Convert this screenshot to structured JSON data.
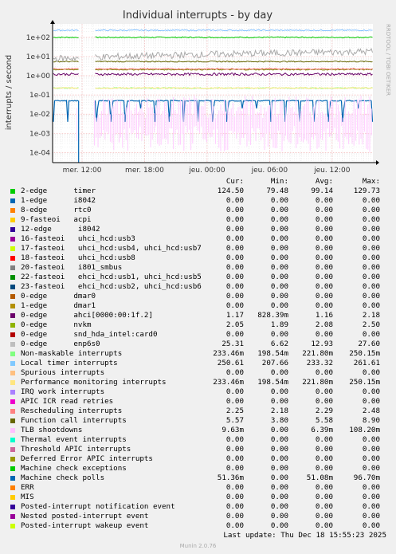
{
  "chart_data": {
    "type": "line",
    "title": "Individual interrupts - by day",
    "ylabel": "interrupts / second",
    "yscale": "log",
    "ylim": [
      3e-05,
      500
    ],
    "yticks": [
      "1e+02",
      "1e+01",
      "1e+00",
      "1e-01",
      "1e-02",
      "1e-03",
      "1e-04"
    ],
    "xticks": [
      "mer. 12:00",
      "mer. 18:00",
      "jeu. 00:00",
      "jeu. 06:00",
      "jeu. 12:00"
    ],
    "gap": [
      "mer. 11:40",
      "mer. 13:10"
    ],
    "series": [
      {
        "name": "timer",
        "color": "#00cc00",
        "level": 100
      },
      {
        "name": "Non-maskable interrupts",
        "color": "#99ff99",
        "level": 0.23
      },
      {
        "name": "Performance monitoring interrupts",
        "color": "#ffe680",
        "level": 0.23
      },
      {
        "name": "Local timer interrupts",
        "color": "#80bfff",
        "level": 233
      },
      {
        "name": "Function call interrupts",
        "color": "#666600",
        "level": 5.5
      },
      {
        "name": "nvkm",
        "color": "#808000",
        "level": 2.1
      },
      {
        "name": "Rescheduling interrupts",
        "color": "#ff8080",
        "level": 2.3
      },
      {
        "name": "ahci",
        "color": "#660066",
        "level": 1.2
      },
      {
        "name": "enp6s0",
        "color": "#aaaaaa",
        "level": 13
      },
      {
        "name": "Machine check polls",
        "color": "#0066b3",
        "level": 0.05
      },
      {
        "name": "TLB shootdowns",
        "color": "#ffccff",
        "level": 0.006
      }
    ]
  },
  "side_label": "RRDTOOL / TOBI OETIKER",
  "legend_header": {
    "cur": "Cur:",
    "min": "Min:",
    "avg": "Avg:",
    "max": "Max:"
  },
  "legend": [
    {
      "label": "2-edge      timer",
      "color": "#00cc00",
      "cur": "124.50",
      "min": "79.48",
      "avg": "99.14",
      "max": "129.73"
    },
    {
      "label": "1-edge      i8042",
      "color": "#0066b3",
      "cur": "0.00",
      "min": "0.00",
      "avg": "0.00",
      "max": "0.00"
    },
    {
      "label": "8-edge      rtc0",
      "color": "#ff8000",
      "cur": "0.00",
      "min": "0.00",
      "avg": "0.00",
      "max": "0.00"
    },
    {
      "label": "9-fasteoi   acpi",
      "color": "#ffcc00",
      "cur": "0.00",
      "min": "0.00",
      "avg": "0.00",
      "max": "0.00"
    },
    {
      "label": "12-edge      i8042",
      "color": "#330099",
      "cur": "0.00",
      "min": "0.00",
      "avg": "0.00",
      "max": "0.00"
    },
    {
      "label": "16-fasteoi   uhci_hcd:usb3",
      "color": "#990099",
      "cur": "0.00",
      "min": "0.00",
      "avg": "0.00",
      "max": "0.00"
    },
    {
      "label": "17-fasteoi   uhci_hcd:usb4, uhci_hcd:usb7",
      "color": "#ccff00",
      "cur": "0.00",
      "min": "0.00",
      "avg": "0.00",
      "max": "0.00"
    },
    {
      "label": "18-fasteoi   uhci_hcd:usb8",
      "color": "#ff0000",
      "cur": "0.00",
      "min": "0.00",
      "avg": "0.00",
      "max": "0.00"
    },
    {
      "label": "20-fasteoi   i801_smbus",
      "color": "#808080",
      "cur": "0.00",
      "min": "0.00",
      "avg": "0.00",
      "max": "0.00"
    },
    {
      "label": "22-fasteoi   ehci_hcd:usb1, uhci_hcd:usb5",
      "color": "#008f00",
      "cur": "0.00",
      "min": "0.00",
      "avg": "0.00",
      "max": "0.00"
    },
    {
      "label": "23-fasteoi   ehci_hcd:usb2, uhci_hcd:usb6",
      "color": "#00487d",
      "cur": "0.00",
      "min": "0.00",
      "avg": "0.00",
      "max": "0.00"
    },
    {
      "label": "0-edge      dmar0",
      "color": "#b35a00",
      "cur": "0.00",
      "min": "0.00",
      "avg": "0.00",
      "max": "0.00"
    },
    {
      "label": "1-edge      dmar1",
      "color": "#b38f00",
      "cur": "0.00",
      "min": "0.00",
      "avg": "0.00",
      "max": "0.00"
    },
    {
      "label": "0-edge      ahci[0000:00:1f.2]",
      "color": "#6b006b",
      "cur": "1.17",
      "min": "828.39m",
      "avg": "1.16",
      "max": "2.18"
    },
    {
      "label": "0-edge      nvkm",
      "color": "#8fb300",
      "cur": "2.05",
      "min": "1.89",
      "avg": "2.08",
      "max": "2.50"
    },
    {
      "label": "0-edge      snd_hda_intel:card0",
      "color": "#b30000",
      "cur": "0.00",
      "min": "0.00",
      "avg": "0.00",
      "max": "0.00"
    },
    {
      "label": "0-edge      enp6s0",
      "color": "#bebebe",
      "cur": "25.31",
      "min": "6.62",
      "avg": "12.93",
      "max": "27.60"
    },
    {
      "label": "Non-maskable interrupts",
      "color": "#80ff80",
      "cur": "233.46m",
      "min": "198.54m",
      "avg": "221.80m",
      "max": "250.15m"
    },
    {
      "label": "Local timer interrupts",
      "color": "#80c9ff",
      "cur": "250.61",
      "min": "207.66",
      "avg": "233.32",
      "max": "261.61"
    },
    {
      "label": "Spurious interrupts",
      "color": "#ffc080",
      "cur": "0.00",
      "min": "0.00",
      "avg": "0.00",
      "max": "0.00"
    },
    {
      "label": "Performance monitoring interrupts",
      "color": "#ffe680",
      "cur": "233.46m",
      "min": "198.54m",
      "avg": "221.80m",
      "max": "250.15m"
    },
    {
      "label": "IRQ work interrupts",
      "color": "#aa80ff",
      "cur": "0.00",
      "min": "0.00",
      "avg": "0.00",
      "max": "0.00"
    },
    {
      "label": "APIC ICR read retries",
      "color": "#ee00cc",
      "cur": "0.00",
      "min": "0.00",
      "avg": "0.00",
      "max": "0.00"
    },
    {
      "label": "Rescheduling interrupts",
      "color": "#ff8080",
      "cur": "2.25",
      "min": "2.18",
      "avg": "2.29",
      "max": "2.48"
    },
    {
      "label": "Function call interrupts",
      "color": "#666600",
      "cur": "5.57",
      "min": "3.80",
      "avg": "5.58",
      "max": "8.90"
    },
    {
      "label": "TLB shootdowns",
      "color": "#ffbfff",
      "cur": "9.63m",
      "min": "0.00",
      "avg": "6.39m",
      "max": "108.20m"
    },
    {
      "label": "Thermal event interrupts",
      "color": "#00ffcc",
      "cur": "0.00",
      "min": "0.00",
      "avg": "0.00",
      "max": "0.00"
    },
    {
      "label": "Threshold APIC interrupts",
      "color": "#cc6699",
      "cur": "0.00",
      "min": "0.00",
      "avg": "0.00",
      "max": "0.00"
    },
    {
      "label": "Deferred Error APIC interrupts",
      "color": "#999900",
      "cur": "0.00",
      "min": "0.00",
      "avg": "0.00",
      "max": "0.00"
    },
    {
      "label": "Machine check exceptions",
      "color": "#00cc00",
      "cur": "0.00",
      "min": "0.00",
      "avg": "0.00",
      "max": "0.00"
    },
    {
      "label": "Machine check polls",
      "color": "#0066b3",
      "cur": "51.36m",
      "min": "0.00",
      "avg": "51.08m",
      "max": "96.70m"
    },
    {
      "label": "ERR",
      "color": "#ff8000",
      "cur": "0.00",
      "min": "0.00",
      "avg": "0.00",
      "max": "0.00"
    },
    {
      "label": "MIS",
      "color": "#ffcc00",
      "cur": "0.00",
      "min": "0.00",
      "avg": "0.00",
      "max": "0.00"
    },
    {
      "label": "Posted-interrupt notification event",
      "color": "#330099",
      "cur": "0.00",
      "min": "0.00",
      "avg": "0.00",
      "max": "0.00"
    },
    {
      "label": "Nested posted-interrupt event",
      "color": "#990099",
      "cur": "0.00",
      "min": "0.00",
      "avg": "0.00",
      "max": "0.00"
    },
    {
      "label": "Posted-interrupt wakeup event",
      "color": "#ccff00",
      "cur": "0.00",
      "min": "0.00",
      "avg": "0.00",
      "max": "0.00"
    }
  ],
  "last_update": "Last update: Thu Dec 18 15:55:23 2025",
  "footer": "Munin 2.0.76"
}
